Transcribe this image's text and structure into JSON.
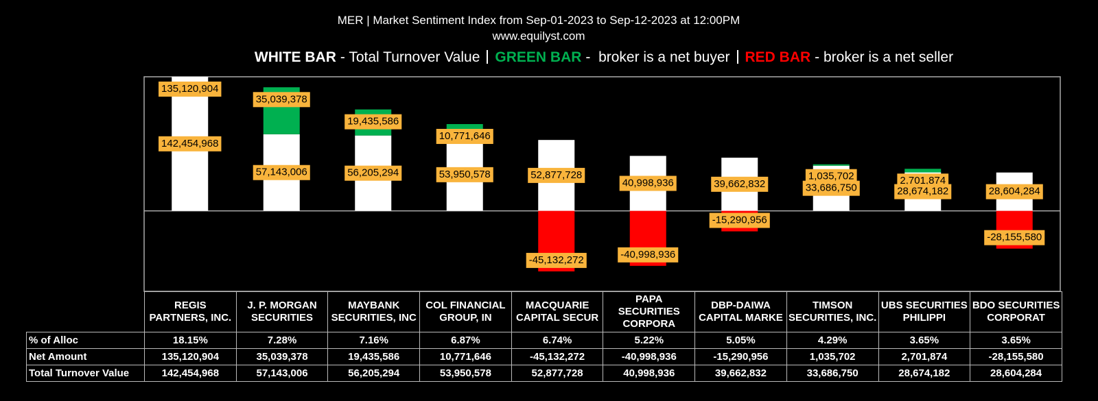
{
  "chart_data": {
    "type": "bar",
    "title": "MER | Market Sentiment Index from Sep-01-2023 to Sep-12-2023 at 12:00PM",
    "subtitle": "www.equilyst.com",
    "legend": [
      {
        "key": "WHITE BAR",
        "text": "- Total Turnover Value",
        "color": "#ffffff"
      },
      {
        "key": "GREEN BAR",
        "text": "-  broker is a net buyer",
        "color": "#00b050"
      },
      {
        "key": "RED BAR",
        "text": "- broker is a net seller",
        "color": "#ff0000"
      }
    ],
    "categories": [
      "REGIS PARTNERS, INC.",
      "J. P. MORGAN SECURITIES",
      "MAYBANK SECURITIES, INC",
      "COL FINANCIAL GROUP, IN",
      "MACQUARIE CAPITAL SECUR",
      "PAPA SECURITIES CORPORA",
      "DBP-DAIWA CAPITAL MARKE",
      "TIMSON SECURITIES, INC.",
      "UBS SECURITIES PHILIPPI",
      "BDO SECURITIES CORPORAT"
    ],
    "ylim": [
      -60000000,
      100000000
    ],
    "alloc": {
      "name": "% of Alloc",
      "values": [
        18.15,
        7.28,
        7.16,
        6.87,
        6.74,
        5.22,
        5.05,
        4.29,
        3.65,
        3.65
      ],
      "value_labels": [
        "18.15%",
        "7.28%",
        "7.16%",
        "6.87%",
        "6.74%",
        "5.22%",
        "5.05%",
        "4.29%",
        "3.65%",
        "3.65%"
      ]
    },
    "series": [
      {
        "name": "Total Turnover Value",
        "color": "#ffffff",
        "values": [
          142454968,
          57143006,
          56205294,
          53950578,
          52877728,
          40998936,
          39662832,
          33686750,
          28674182,
          28604284
        ],
        "value_labels": [
          "142,454,968",
          "57,143,006",
          "56,205,294",
          "53,950,578",
          "52,877,728",
          "40,998,936",
          "39,662,832",
          "33,686,750",
          "28,674,182",
          "28,604,284"
        ]
      },
      {
        "name": "Net Amount",
        "color": "#00b050",
        "negative_color": "#ff0000",
        "values": [
          135120904,
          35039378,
          19435586,
          10771646,
          -45132272,
          -40998936,
          -15290956,
          1035702,
          2701874,
          -28155580
        ],
        "value_labels": [
          "135,120,904",
          "35,039,378",
          "19,435,586",
          "10,771,646",
          "-45,132,272",
          "-40,998,936",
          "-15,290,956",
          "1,035,702",
          "2,701,874",
          "-28,155,580"
        ]
      }
    ]
  }
}
